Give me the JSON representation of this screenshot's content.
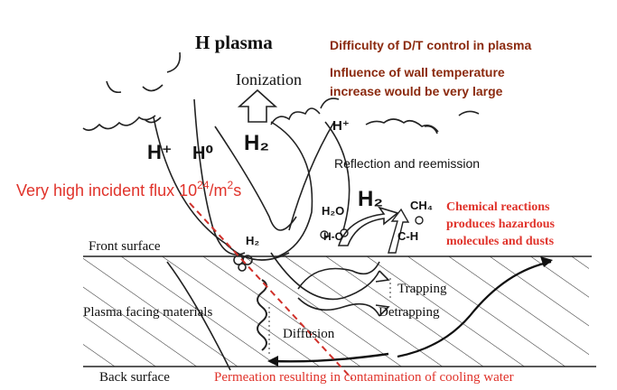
{
  "title": "H plasma",
  "notes": {
    "line1": "Difficulty of D/T control in plasma",
    "line2": "Influence of wall temperature",
    "line3": "increase would be very large"
  },
  "labels": {
    "ionization": "Ionization",
    "h_plus_big": "H⁺",
    "h0": "H⁰",
    "h2_center": "H₂",
    "h_plus_small": "H⁺",
    "reflection": "Reflection and reemission",
    "flux_prefix": "Very high incident flux 10",
    "flux_exp": "24",
    "flux_unit": "/m",
    "flux_unit_exp": "2",
    "flux_suffix": "s",
    "h2o": "H₂O",
    "h2_large": "H₂",
    "ch4": "CH₄",
    "ho": "H-O",
    "ch": "C-H",
    "h2_surface": "H₂",
    "chem1": "Chemical reactions",
    "chem2": "produces  hazardous",
    "chem3": "molecules and dusts",
    "front_surface": "Front surface",
    "trapping": "Trapping",
    "detrapping": "Detrapping",
    "plasma_facing": "Plasma facing materials",
    "diffusion": "Diffusion",
    "back_surface": "Back surface",
    "permeation": "Permeation resulting in contamination of cooling water"
  },
  "colors": {
    "dark_red": "#8b2a0f",
    "red": "#e0332b",
    "ink": "#111111"
  }
}
